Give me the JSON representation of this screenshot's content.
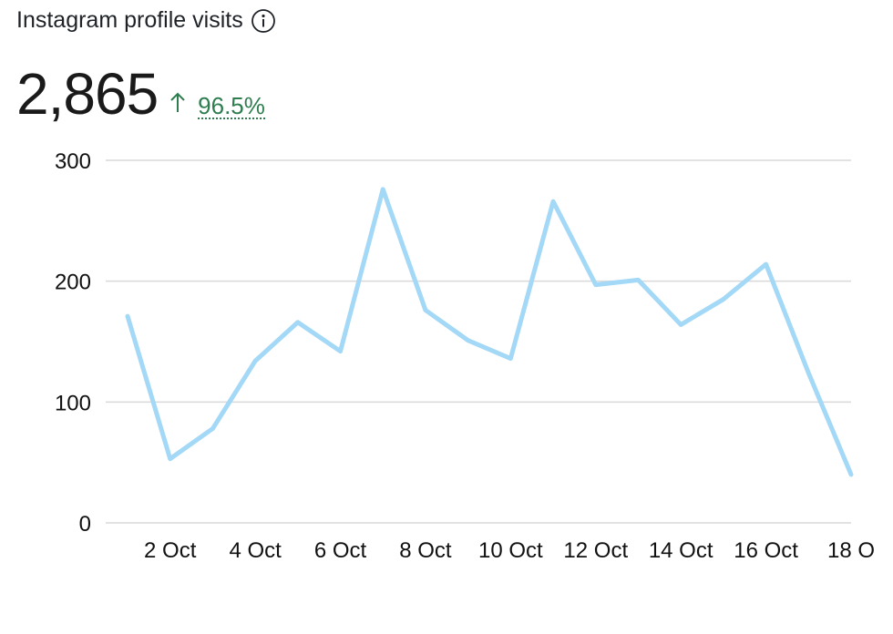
{
  "header": {
    "title": "Instagram profile visits",
    "value": "2,865",
    "change": "96.5%"
  },
  "chart_data": {
    "type": "line",
    "categories": [
      null,
      "2 Oct",
      null,
      "4 Oct",
      null,
      "6 Oct",
      null,
      "8 Oct",
      null,
      "10 Oct",
      null,
      "12 Oct",
      null,
      "14 Oct",
      null,
      "16 Oct",
      null,
      "18 O"
    ],
    "values": [
      171,
      53,
      78,
      134,
      166,
      142,
      276,
      176,
      151,
      136,
      266,
      197,
      201,
      164,
      185,
      214,
      124,
      40
    ],
    "color": "#a3d8f7",
    "ylim": [
      0,
      300
    ],
    "yticks": [
      0,
      100,
      200,
      300
    ],
    "grid": true
  }
}
